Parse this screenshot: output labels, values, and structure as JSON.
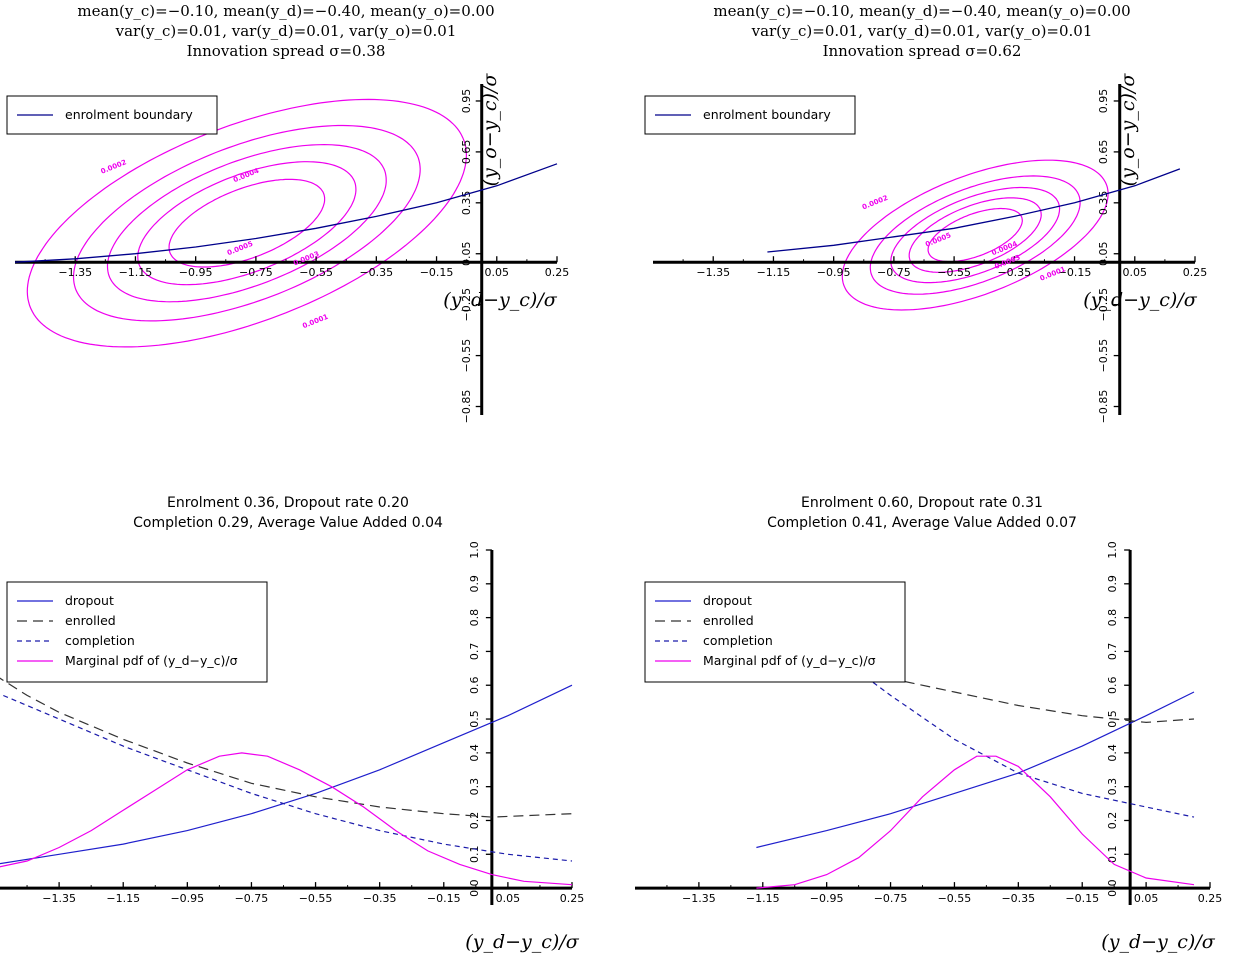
{
  "colors": {
    "boundary": "#00008b",
    "contour": "#ee00ee",
    "dropout": "#1f1fcc",
    "enrolled": "#333333",
    "completion": "#1a1aaa",
    "pdf": "#ee00ee",
    "axis": "#000000"
  },
  "chart_data": [
    {
      "type": "contour",
      "title_lines": [
        "mean(y_c)=−0.10, mean(y_d)=−0.40, mean(y_o)=0.00",
        "var(y_c)=0.01, var(y_d)=0.01, var(y_o)=0.01",
        "Innovation spread σ=0.38"
      ],
      "xlabel": "(y_d−y_c)/σ",
      "ylabel": "(y_o−y_c)/σ",
      "xticks": [
        "−1.35",
        "−1.15",
        "−0.95",
        "−0.75",
        "−0.55",
        "−0.35",
        "−0.15",
        "0.05",
        "0.25"
      ],
      "yticks": [
        "−0.85",
        "−0.55",
        "−0.25",
        "0.05",
        "0.35",
        "0.65",
        "0.95"
      ],
      "xlim": [
        -1.55,
        0.25
      ],
      "ylim": [
        -0.9,
        1.05
      ],
      "legend": [
        "enrolment boundary"
      ],
      "legend_position": "top-left",
      "boundary": {
        "x": [
          -1.55,
          -1.35,
          -1.15,
          -0.95,
          -0.75,
          -0.55,
          -0.35,
          -0.15,
          0.05,
          0.25
        ],
        "y": [
          0.0,
          0.02,
          0.05,
          0.09,
          0.14,
          0.2,
          0.27,
          0.35,
          0.45,
          0.58
        ]
      },
      "density": {
        "center": [
          -0.78,
          0.23
        ],
        "sx": 0.38,
        "sy": 0.38,
        "rho": 0.55,
        "amp": 0.00063
      },
      "contour_levels": [
        0.0001,
        0.0002,
        0.0003,
        0.0004,
        0.0005
      ],
      "contour_labels": [
        {
          "text": "0.0002",
          "x": -1.22,
          "y": 0.55
        },
        {
          "text": "0.0004",
          "x": -0.78,
          "y": 0.5
        },
        {
          "text": "0.0005",
          "x": -0.8,
          "y": 0.07
        },
        {
          "text": "0.0003",
          "x": -0.58,
          "y": 0.01
        },
        {
          "text": "0.0001",
          "x": -0.55,
          "y": -0.36
        }
      ]
    },
    {
      "type": "contour",
      "title_lines": [
        "mean(y_c)=−0.10, mean(y_d)=−0.40, mean(y_o)=0.00",
        "var(y_c)=0.01, var(y_d)=0.01, var(y_o)=0.01",
        "Innovation spread σ=0.62"
      ],
      "xlabel": "(y_d−y_c)/σ",
      "ylabel": "(y_o−y_c)/σ",
      "xticks": [
        "−1.35",
        "−1.15",
        "−0.95",
        "−0.75",
        "−0.55",
        "−0.35",
        "−0.15",
        "0.05",
        "0.25"
      ],
      "yticks": [
        "−0.85",
        "−0.55",
        "−0.25",
        "0.05",
        "0.35",
        "0.65",
        "0.95"
      ],
      "xlim": [
        -1.55,
        0.25
      ],
      "ylim": [
        -0.9,
        1.05
      ],
      "legend": [
        "enrolment boundary"
      ],
      "legend_position": "top-left",
      "boundary": {
        "x": [
          -1.17,
          -0.95,
          -0.75,
          -0.55,
          -0.35,
          -0.15,
          0.05,
          0.2
        ],
        "y": [
          0.06,
          0.1,
          0.15,
          0.2,
          0.27,
          0.35,
          0.45,
          0.55
        ]
      },
      "density": {
        "center": [
          -0.48,
          0.16
        ],
        "sx": 0.23,
        "sy": 0.23,
        "rho": 0.55,
        "amp": 0.00063
      },
      "contour_levels": [
        0.0001,
        0.0002,
        0.0003,
        0.0004,
        0.0005
      ],
      "contour_labels": [
        {
          "text": "0.0002",
          "x": -0.81,
          "y": 0.34
        },
        {
          "text": "0.0005",
          "x": -0.6,
          "y": 0.12
        },
        {
          "text": "0.0004",
          "x": -0.38,
          "y": 0.07
        },
        {
          "text": "0.0003",
          "x": -0.37,
          "y": -0.01
        },
        {
          "text": "0.0001",
          "x": -0.22,
          "y": -0.08
        }
      ]
    },
    {
      "type": "line",
      "title_lines": [
        "Enrolment 0.36, Dropout rate 0.20",
        "Completion 0.29, Average Value Added 0.04"
      ],
      "xlabel": "(y_d−y_c)/σ",
      "xticks": [
        "−1.35",
        "−1.15",
        "−0.95",
        "−0.75",
        "−0.55",
        "−0.35",
        "−0.15",
        "0.05",
        "0.25"
      ],
      "yticks": [
        "0.0",
        "0.1",
        "0.2",
        "0.3",
        "0.4",
        "0.5",
        "0.6",
        "0.7",
        "0.8",
        "0.9",
        "1.0"
      ],
      "xlim": [
        -1.55,
        0.25
      ],
      "ylim": [
        -0.05,
        1.0
      ],
      "legend": [
        "dropout",
        "enrolled",
        "completion",
        "Marginal pdf of (y_d−y_c)/σ"
      ],
      "legend_position": "top-left",
      "series": [
        {
          "name": "dropout",
          "x": [
            -1.55,
            -1.35,
            -1.15,
            -0.95,
            -0.75,
            -0.55,
            -0.35,
            -0.15,
            0.05,
            0.25
          ],
          "y": [
            0.07,
            0.1,
            0.13,
            0.17,
            0.22,
            0.28,
            0.35,
            0.43,
            0.51,
            0.6
          ]
        },
        {
          "name": "enrolled",
          "x": [
            -1.55,
            -1.45,
            -1.35,
            -1.15,
            -0.95,
            -0.75,
            -0.55,
            -0.35,
            -0.15,
            0.0,
            0.25
          ],
          "y": [
            0.63,
            0.57,
            0.52,
            0.44,
            0.37,
            0.31,
            0.27,
            0.24,
            0.22,
            0.21,
            0.22
          ]
        },
        {
          "name": "completion",
          "x": [
            -1.55,
            -1.35,
            -1.15,
            -0.95,
            -0.75,
            -0.55,
            -0.35,
            -0.15,
            0.05,
            0.25
          ],
          "y": [
            0.58,
            0.5,
            0.42,
            0.35,
            0.28,
            0.22,
            0.17,
            0.13,
            0.1,
            0.08
          ]
        },
        {
          "name": "Marginal pdf of (y_d−y_c)/σ",
          "x": [
            -1.55,
            -1.45,
            -1.35,
            -1.25,
            -1.15,
            -1.05,
            -0.95,
            -0.85,
            -0.78,
            -0.7,
            -0.6,
            -0.5,
            -0.4,
            -0.3,
            -0.2,
            -0.1,
            0.0,
            0.1,
            0.25
          ],
          "y": [
            0.06,
            0.08,
            0.12,
            0.17,
            0.23,
            0.29,
            0.35,
            0.39,
            0.4,
            0.39,
            0.35,
            0.3,
            0.24,
            0.17,
            0.11,
            0.07,
            0.04,
            0.02,
            0.01
          ]
        }
      ]
    },
    {
      "type": "line",
      "title_lines": [
        "Enrolment 0.60, Dropout rate 0.31",
        "Completion 0.41, Average Value Added 0.07"
      ],
      "xlabel": "(y_d−y_c)/σ",
      "xticks": [
        "−1.35",
        "−1.15",
        "−0.95",
        "−0.75",
        "−0.55",
        "−0.35",
        "−0.15",
        "0.05",
        "0.25"
      ],
      "yticks": [
        "0.0",
        "0.1",
        "0.2",
        "0.3",
        "0.4",
        "0.5",
        "0.6",
        "0.7",
        "0.8",
        "0.9",
        "1.0"
      ],
      "xlim": [
        -1.55,
        0.25
      ],
      "ylim": [
        -0.05,
        1.0
      ],
      "legend": [
        "dropout",
        "enrolled",
        "completion",
        "Marginal pdf of (y_d−y_c)/σ"
      ],
      "legend_position": "top-left",
      "series": [
        {
          "name": "dropout",
          "x": [
            -1.17,
            -0.95,
            -0.75,
            -0.55,
            -0.35,
            -0.15,
            0.05,
            0.2
          ],
          "y": [
            0.12,
            0.17,
            0.22,
            0.28,
            0.34,
            0.42,
            0.51,
            0.58
          ]
        },
        {
          "name": "enrolled",
          "x": [
            -0.85,
            -0.75,
            -0.55,
            -0.35,
            -0.15,
            -0.05,
            0.05,
            0.2
          ],
          "y": [
            0.65,
            0.62,
            0.58,
            0.54,
            0.51,
            0.5,
            0.49,
            0.5
          ]
        },
        {
          "name": "completion",
          "x": [
            -0.85,
            -0.75,
            -0.55,
            -0.35,
            -0.15,
            0.05,
            0.2
          ],
          "y": [
            0.64,
            0.57,
            0.44,
            0.34,
            0.28,
            0.24,
            0.21
          ]
        },
        {
          "name": "Marginal pdf of (y_d−y_c)/σ",
          "x": [
            -1.17,
            -1.05,
            -0.95,
            -0.85,
            -0.75,
            -0.65,
            -0.55,
            -0.48,
            -0.42,
            -0.35,
            -0.25,
            -0.15,
            -0.05,
            0.05,
            0.2
          ],
          "y": [
            0.0,
            0.01,
            0.04,
            0.09,
            0.17,
            0.27,
            0.35,
            0.39,
            0.39,
            0.36,
            0.27,
            0.16,
            0.07,
            0.03,
            0.01
          ]
        }
      ]
    }
  ]
}
